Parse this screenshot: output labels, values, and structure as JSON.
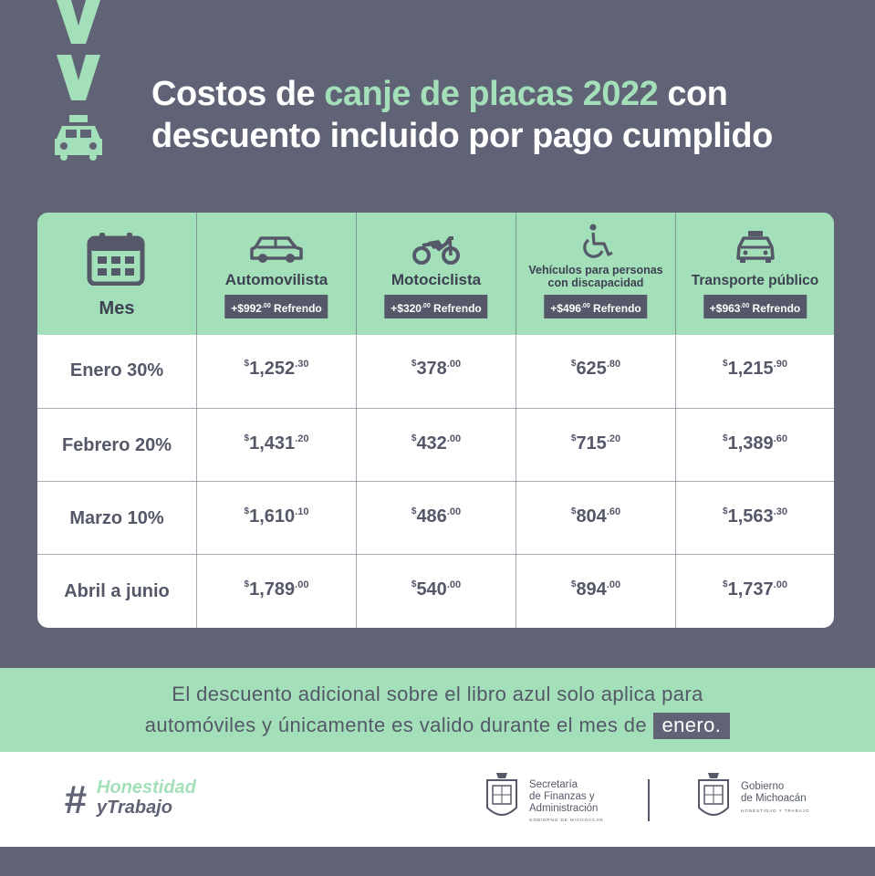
{
  "title": {
    "part1": "Costos de ",
    "highlight": "canje de placas 2022",
    "part2": " con",
    "line2": "descuento incluido por pago cumplido"
  },
  "table": {
    "headers": {
      "mes": "Mes",
      "automovilista": {
        "label": "Automovilista",
        "badge_prefix": "+$",
        "badge_amount": "992",
        "badge_cents": ".00",
        "badge_suffix": " Refrendo"
      },
      "motociclista": {
        "label": "Motociclista",
        "badge_prefix": "+$",
        "badge_amount": "320",
        "badge_cents": ".00",
        "badge_suffix": " Refrendo"
      },
      "discapacidad": {
        "label_line1": "Vehículos para personas",
        "label_line2": "con discapacidad",
        "badge_prefix": "+$",
        "badge_amount": "496",
        "badge_cents": ".00",
        "badge_suffix": " Refrendo"
      },
      "transporte": {
        "label": "Transporte público",
        "badge_prefix": "+$",
        "badge_amount": "963",
        "badge_cents": ".00",
        "badge_suffix": " Refrendo"
      }
    },
    "rows": [
      {
        "label": "Enero 30%",
        "prices": [
          {
            "main": "1,252",
            "cents": ".30"
          },
          {
            "main": "378",
            "cents": ".00"
          },
          {
            "main": "625",
            "cents": ".80"
          },
          {
            "main": "1,215",
            "cents": ".90"
          }
        ]
      },
      {
        "label": "Febrero 20%",
        "prices": [
          {
            "main": "1,431",
            "cents": ".20"
          },
          {
            "main": "432",
            "cents": ".00"
          },
          {
            "main": "715",
            "cents": ".20"
          },
          {
            "main": "1,389",
            "cents": ".60"
          }
        ]
      },
      {
        "label": "Marzo 10%",
        "prices": [
          {
            "main": "1,610",
            "cents": ".10"
          },
          {
            "main": "486",
            "cents": ".00"
          },
          {
            "main": "804",
            "cents": ".60"
          },
          {
            "main": "1,563",
            "cents": ".30"
          }
        ]
      },
      {
        "label": "Abril a junio",
        "prices": [
          {
            "main": "1,789",
            "cents": ".00"
          },
          {
            "main": "540",
            "cents": ".00"
          },
          {
            "main": "894",
            "cents": ".00"
          },
          {
            "main": "1,737",
            "cents": ".00"
          }
        ]
      }
    ],
    "currency": "$"
  },
  "note": {
    "line1": "El descuento adicional sobre el libro azul solo aplica para",
    "line2": "automóviles y únicamente es valido durante el mes de",
    "highlight": "enero."
  },
  "footer": {
    "hash": "#",
    "hashtag_line1": "Honestidad",
    "hashtag_line2": "yTrabajo",
    "logo1_line1": "Secretaría",
    "logo1_line2": "de Finanzas y",
    "logo1_line3": "Administración",
    "logo1_sub": "GOBIERNO DE MICHOACÁN",
    "logo2_line1": "Gobierno",
    "logo2_line2": "de Michoacán",
    "logo2_sub": "HONESTIDAD Y TRABAJO"
  },
  "colors": {
    "mint": "#a3dfb8",
    "slate": "#5f6375",
    "dark_text": "#545868"
  }
}
